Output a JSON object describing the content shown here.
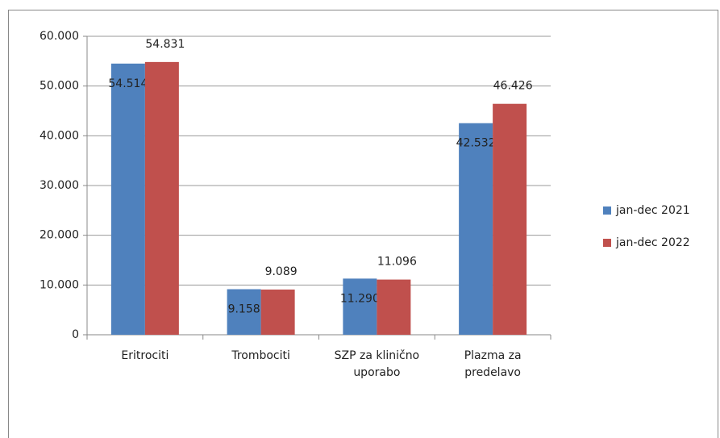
{
  "chart_data": {
    "type": "bar",
    "categories": [
      "Eritrociti",
      "Trombociti",
      "SZP za klinično uporabo",
      "Plazma za predelavo"
    ],
    "series": [
      {
        "name": "jan-dec 2021",
        "color": "#4f81bd",
        "values": [
          54514,
          9158,
          11290,
          42532
        ],
        "value_labels": [
          "54.514",
          "9.158",
          "11.290",
          "42.532"
        ]
      },
      {
        "name": "jan-dec 2022",
        "color": "#c0504d",
        "values": [
          54831,
          9089,
          11096,
          46426
        ],
        "value_labels": [
          "54.831",
          "9.089",
          "11.096",
          "46.426"
        ]
      }
    ],
    "ylim": [
      0,
      60000
    ],
    "yticks": [
      0,
      {
        "value": 10000,
        "label": "10.000"
      },
      {
        "value": 20000,
        "label": "20.000"
      },
      {
        "value": 30000,
        "label": "30.000"
      },
      {
        "value": 40000,
        "label": "40.000"
      },
      {
        "value": 50000,
        "label": "50.000"
      },
      {
        "value": 60000,
        "label": "60.000"
      }
    ],
    "grid": true,
    "legend": "right"
  }
}
